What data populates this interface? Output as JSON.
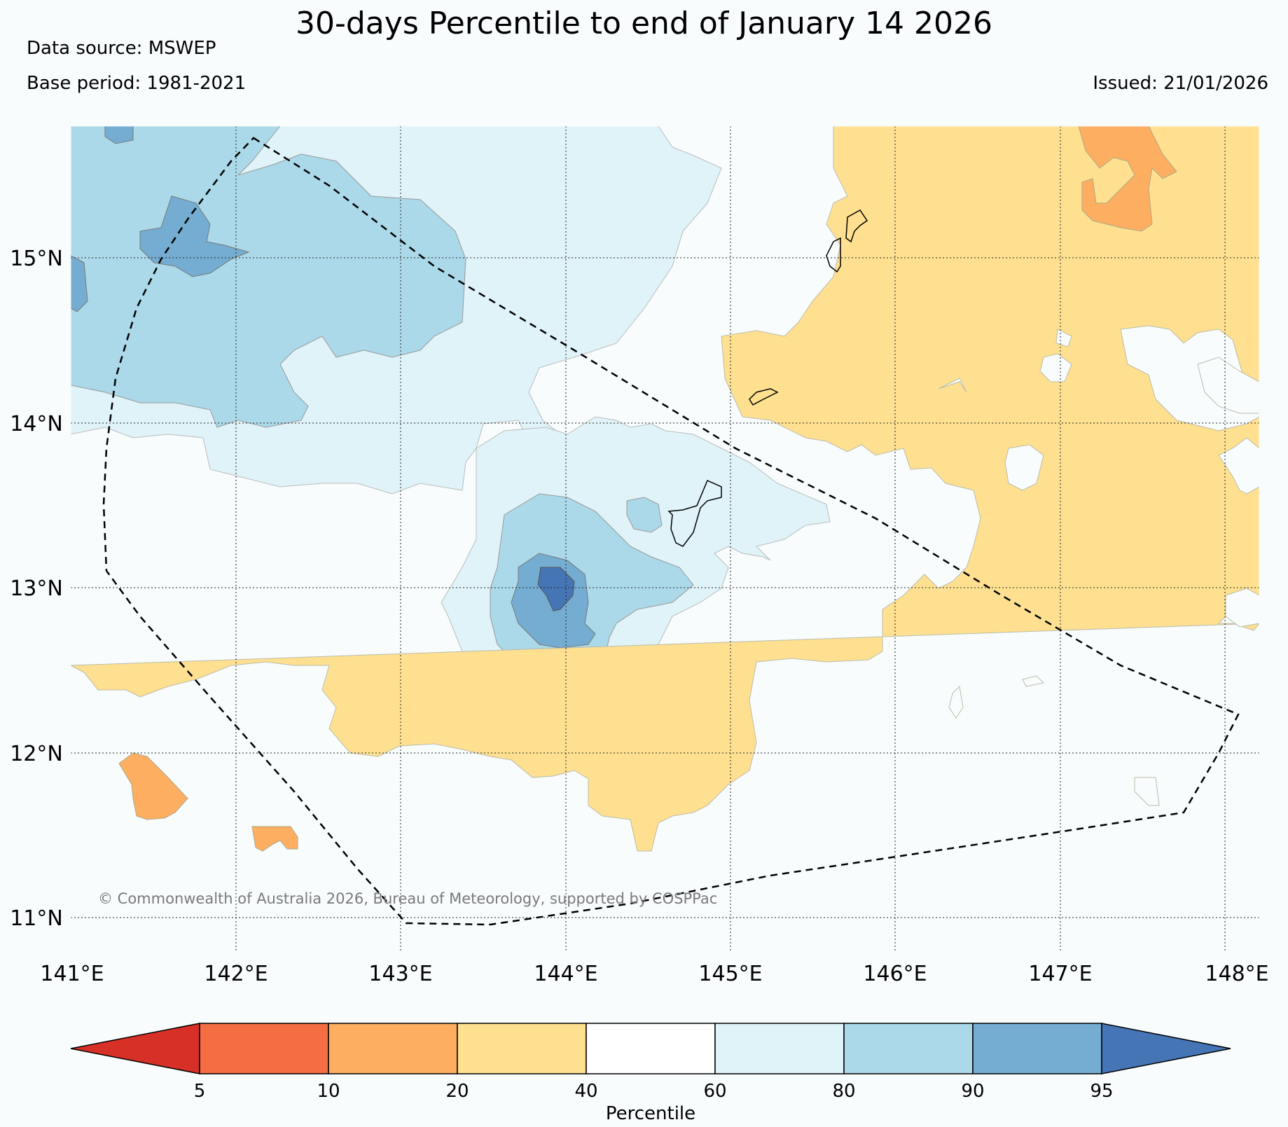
{
  "header": {
    "title": "30-days Percentile to end of January 14 2026",
    "data_source": "Data source: MSWEP",
    "base_period": "Base period: 1981-2021",
    "issued": "Issued: 21/01/2026"
  },
  "map": {
    "lon_range": [
      141.0,
      148.2
    ],
    "lat_range": [
      10.8,
      15.8
    ],
    "lon_ticks": [
      "141°E",
      "142°E",
      "143°E",
      "144°E",
      "145°E",
      "146°E",
      "147°E",
      "148°E"
    ],
    "lat_ticks": [
      "15°N",
      "14°N",
      "13°N",
      "12°N",
      "11°N"
    ],
    "copyright": "© Commonwealth of Australia 2026, Bureau of Meteorology, supported by COSPPac"
  },
  "colorbar": {
    "label": "Percentile",
    "ticks": [
      "5",
      "10",
      "20",
      "40",
      "60",
      "80",
      "90",
      "95"
    ],
    "colors": [
      "#d73027",
      "#f46d43",
      "#fdae61",
      "#fee090",
      "#ffffff",
      "#e0f3f8",
      "#abd9e9",
      "#74add1",
      "#4575b4"
    ]
  }
}
